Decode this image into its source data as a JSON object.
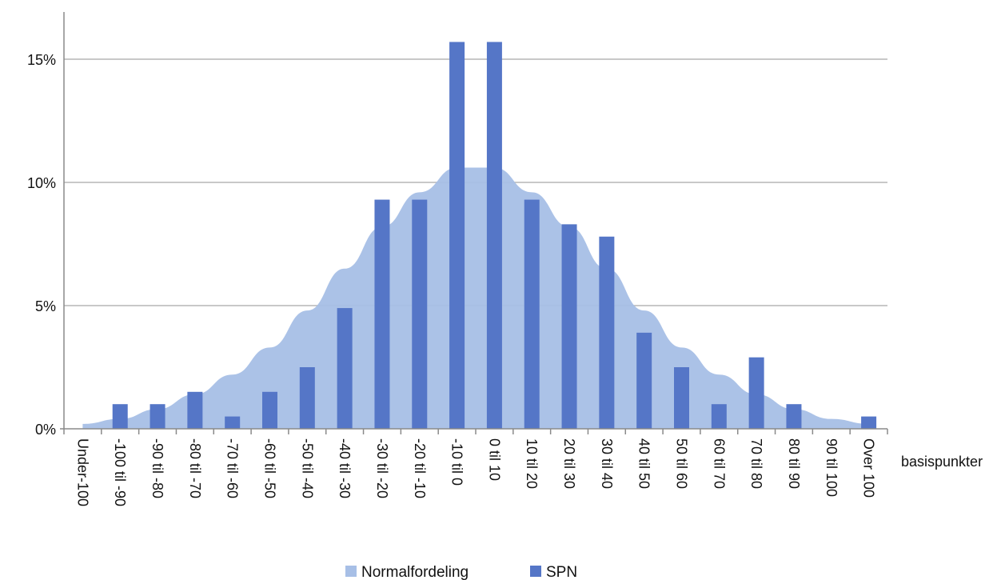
{
  "chart_data": {
    "type": "bar",
    "xlabel": "basispunkter",
    "ylabel": "",
    "ylim": [
      0,
      0.17
    ],
    "yticks": [
      "0%",
      "5%",
      "10%",
      "15%"
    ],
    "ytick_values": [
      0,
      0.05,
      0.1,
      0.15
    ],
    "grid": true,
    "legend_position": "bottom",
    "categories": [
      "Under-100",
      "-100 til -90",
      "-90 til -80",
      "-80 til -70",
      "-70 til -60",
      "-60 til -50",
      "-50 til -40",
      "-40 til -30",
      "-30 til -20",
      "-20 til -10",
      "-10 til 0",
      "0 til 10",
      "10 til 20",
      "20 til 30",
      "30 til 40",
      "40 til 50",
      "50 til 60",
      "60 til 70",
      "70 til 80",
      "80 til 90",
      "90 til 100",
      "Over 100"
    ],
    "series": [
      {
        "name": "Normalfordeling",
        "type": "area",
        "color": "#a7bfe6",
        "values": [
          0.002,
          0.004,
          0.008,
          0.014,
          0.022,
          0.033,
          0.048,
          0.065,
          0.082,
          0.096,
          0.106,
          0.106,
          0.096,
          0.082,
          0.065,
          0.048,
          0.033,
          0.022,
          0.014,
          0.008,
          0.004,
          0.002
        ]
      },
      {
        "name": "SPN",
        "type": "bar",
        "color": "#5576c7",
        "values": [
          0,
          0.01,
          0.01,
          0.015,
          0.005,
          0.015,
          0.025,
          0.049,
          0.093,
          0.093,
          0.157,
          0.157,
          0.093,
          0.083,
          0.078,
          0.039,
          0.025,
          0.01,
          0.029,
          0.01,
          0,
          0.005
        ]
      }
    ]
  }
}
